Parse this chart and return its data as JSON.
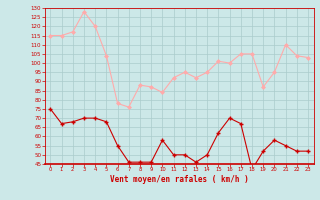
{
  "x": [
    0,
    1,
    2,
    3,
    4,
    5,
    6,
    7,
    8,
    9,
    10,
    11,
    12,
    13,
    14,
    15,
    16,
    17,
    18,
    19,
    20,
    21,
    22,
    23
  ],
  "wind_mean": [
    75,
    67,
    68,
    70,
    70,
    68,
    55,
    46,
    46,
    46,
    58,
    50,
    50,
    46,
    50,
    62,
    70,
    67,
    42,
    52,
    58,
    55,
    52,
    52
  ],
  "wind_gust": [
    115,
    115,
    117,
    128,
    120,
    104,
    78,
    76,
    88,
    87,
    84,
    92,
    95,
    92,
    95,
    101,
    100,
    105,
    105,
    87,
    95,
    110,
    104,
    103
  ],
  "bg_color": "#cce8e8",
  "grid_color": "#aacccc",
  "line_mean_color": "#cc0000",
  "line_gust_color": "#ffaaaa",
  "marker_mean_color": "#cc0000",
  "marker_gust_color": "#ffaaaa",
  "xlabel": "Vent moyen/en rafales ( km/h )",
  "xlabel_color": "#cc0000",
  "axis_color": "#cc0000",
  "tick_color": "#cc0000",
  "ylim_min": 45,
  "ylim_max": 130,
  "yticks": [
    45,
    50,
    55,
    60,
    65,
    70,
    75,
    80,
    85,
    90,
    95,
    100,
    105,
    110,
    115,
    120,
    125,
    130
  ]
}
